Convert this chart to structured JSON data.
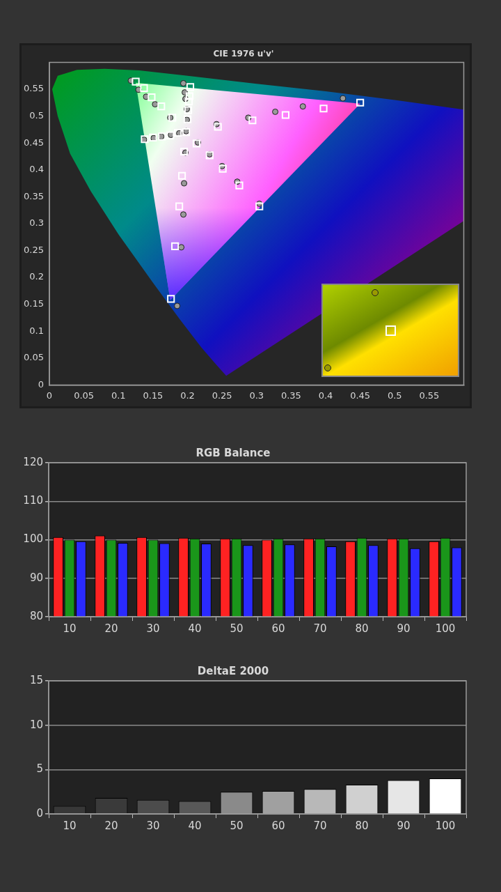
{
  "chart_data": [
    {
      "type": "scatter",
      "title": "CIE 1976 u'v'",
      "xlim": [
        0,
        0.6
      ],
      "ylim": [
        0,
        0.6
      ],
      "xticks": [
        0,
        0.05,
        0.1,
        0.15,
        0.2,
        0.25,
        0.3,
        0.35,
        0.4,
        0.45,
        0.5,
        0.55
      ],
      "yticks": [
        0,
        0.05,
        0.1,
        0.15,
        0.2,
        0.25,
        0.3,
        0.35,
        0.4,
        0.45,
        0.5,
        0.55
      ],
      "grid": false,
      "legend": false,
      "series": [
        {
          "color": "#ffffff",
          "marker": "square",
          "x": [
            0.125,
            0.137,
            0.148,
            0.162,
            0.178,
            0.198,
            0.138,
            0.15,
            0.163,
            0.175,
            0.186,
            0.204,
            0.203,
            0.202,
            0.201,
            0.2,
            0.244,
            0.294,
            0.342,
            0.397,
            0.45,
            0.213,
            0.232,
            0.251,
            0.275,
            0.304,
            0.195,
            0.192,
            0.188,
            0.182,
            0.176
          ],
          "values": [
            0.564,
            0.552,
            0.535,
            0.518,
            0.497,
            0.47,
            0.457,
            0.46,
            0.462,
            0.464,
            0.469,
            0.554,
            0.537,
            0.527,
            0.511,
            0.494,
            0.48,
            0.492,
            0.502,
            0.514,
            0.525,
            0.449,
            0.427,
            0.402,
            0.371,
            0.332,
            0.434,
            0.389,
            0.332,
            0.258,
            0.16
          ]
        },
        {
          "color": "#9a9a9a",
          "marker": "circle",
          "x": [
            0.118,
            0.129,
            0.14,
            0.153,
            0.175,
            0.198,
            0.137,
            0.151,
            0.162,
            0.176,
            0.188,
            0.194,
            0.196,
            0.197,
            0.199,
            0.199,
            0.242,
            0.288,
            0.327,
            0.367,
            0.425,
            0.215,
            0.232,
            0.25,
            0.272,
            0.304,
            0.197,
            0.195,
            0.194,
            0.191,
            0.185
          ],
          "values": [
            0.566,
            0.549,
            0.536,
            0.522,
            0.497,
            0.472,
            0.456,
            0.459,
            0.462,
            0.465,
            0.468,
            0.561,
            0.544,
            0.532,
            0.513,
            0.493,
            0.485,
            0.497,
            0.508,
            0.518,
            0.533,
            0.451,
            0.429,
            0.407,
            0.378,
            0.337,
            0.432,
            0.375,
            0.317,
            0.256,
            0.147
          ]
        }
      ]
    },
    {
      "type": "bar",
      "title": "RGB Balance",
      "categories": [
        "10",
        "20",
        "30",
        "40",
        "50",
        "60",
        "70",
        "80",
        "90",
        "100"
      ],
      "ylim": [
        80,
        120
      ],
      "yticks": [
        80,
        90,
        100,
        110,
        120
      ],
      "grid": "y",
      "legend": false,
      "series": [
        {
          "color": "#ff2222",
          "values": [
            100.7,
            101.1,
            100.7,
            100.5,
            100.3,
            100.0,
            100.3,
            99.6,
            100.3,
            99.6
          ]
        },
        {
          "color": "#1a961a",
          "values": [
            100.0,
            100.0,
            100.0,
            100.3,
            100.3,
            100.3,
            100.3,
            100.5,
            100.3,
            100.5
          ]
        },
        {
          "color": "#2a2aff",
          "values": [
            99.6,
            99.2,
            99.1,
            99.0,
            98.6,
            98.8,
            98.3,
            98.6,
            97.8,
            98.0
          ]
        }
      ]
    },
    {
      "type": "bar",
      "title": "DeltaE 2000",
      "categories": [
        "10",
        "20",
        "30",
        "40",
        "50",
        "60",
        "70",
        "80",
        "90",
        "100"
      ],
      "ylim": [
        0,
        15
      ],
      "yticks": [
        0,
        5,
        10,
        15
      ],
      "grid": "y",
      "legend": false,
      "values": [
        0.9,
        1.8,
        1.6,
        1.45,
        2.5,
        2.6,
        2.8,
        3.3,
        3.8,
        4.0
      ],
      "colors": [
        "#383838",
        "#3a3a3a",
        "#4c4c4c",
        "#585858",
        "#8a8a8a",
        "#a0a0a0",
        "#b8b8b8",
        "#d0d0d0",
        "#e6e6e6",
        "#ffffff"
      ]
    }
  ]
}
